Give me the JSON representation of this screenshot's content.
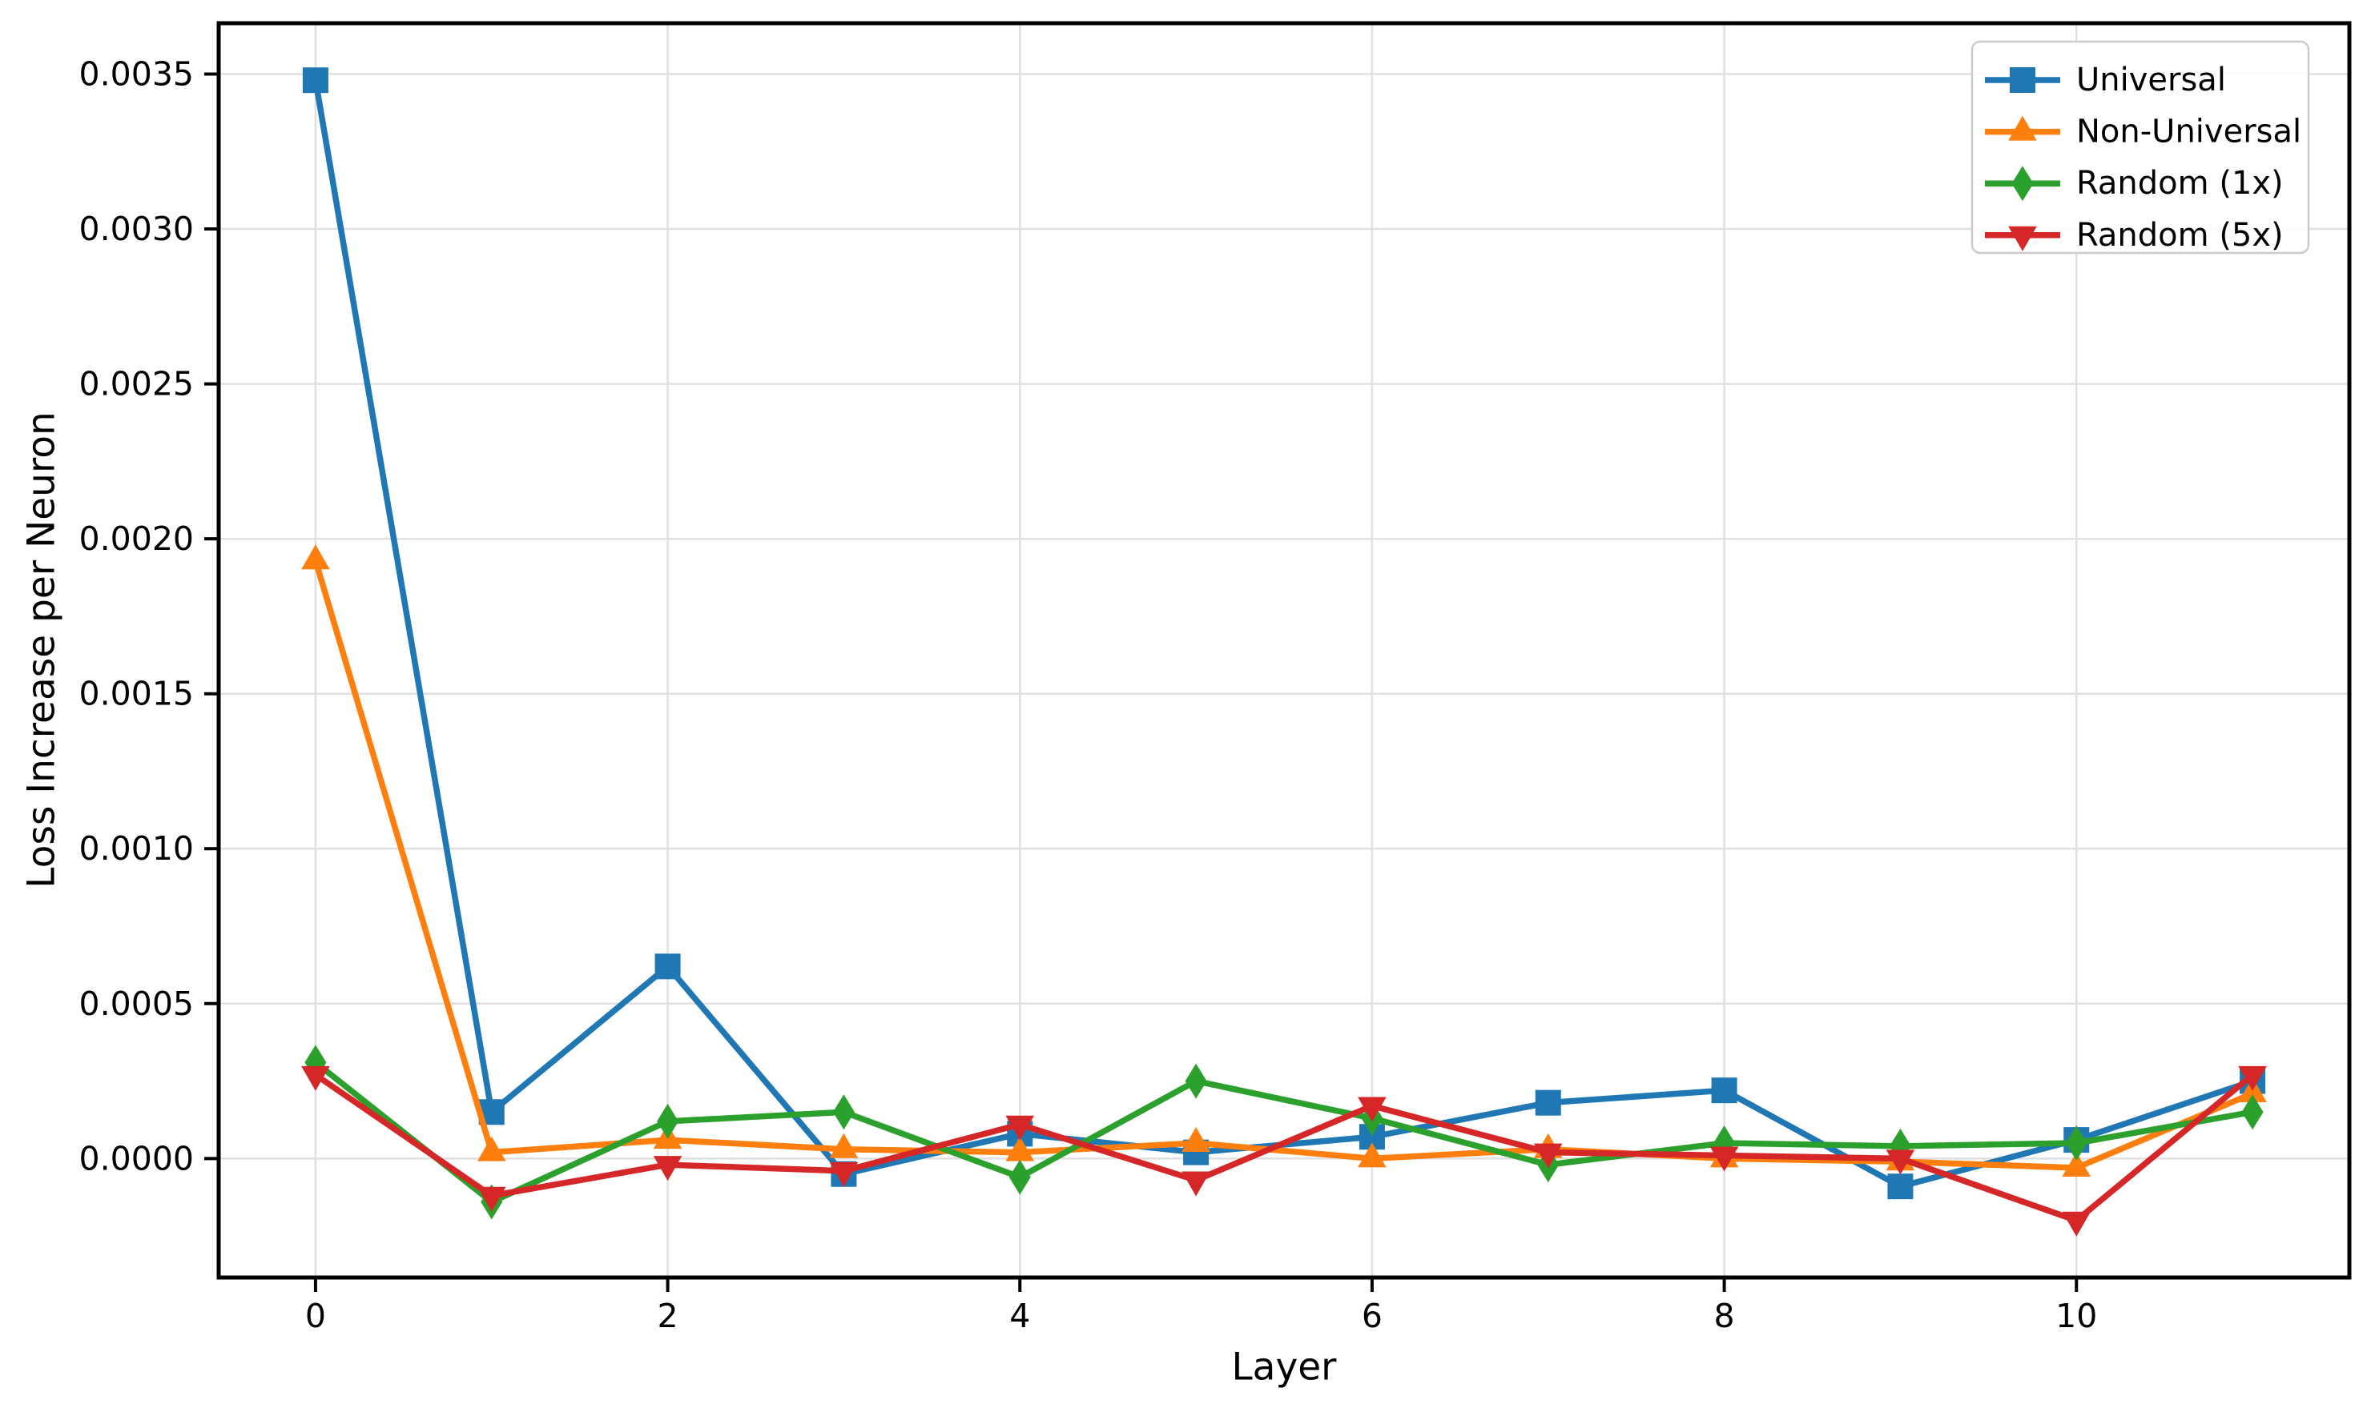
{
  "chart_data": {
    "type": "line",
    "title": "",
    "xlabel": "Layer",
    "ylabel": "Loss Increase per Neuron",
    "x": [
      0,
      1,
      2,
      3,
      4,
      5,
      6,
      7,
      8,
      9,
      10,
      11
    ],
    "series": [
      {
        "name": "Universal",
        "color": "#1f77b4",
        "marker": "square",
        "values": [
          0.00348,
          0.00015,
          0.00062,
          -5e-05,
          8e-05,
          2e-05,
          7e-05,
          0.00018,
          0.00022,
          -9e-05,
          6e-05,
          0.00025
        ]
      },
      {
        "name": "Non-Universal",
        "color": "#ff7f0e",
        "marker": "triangle-up",
        "values": [
          0.00193,
          2e-05,
          6e-05,
          3e-05,
          2e-05,
          5e-05,
          0.0,
          3e-05,
          0.0,
          -1e-05,
          -3e-05,
          0.00021
        ]
      },
      {
        "name": "Random (1x)",
        "color": "#2ca02c",
        "marker": "thin-diamond",
        "values": [
          0.00031,
          -0.00014,
          0.00012,
          0.00015,
          -6e-05,
          0.00025,
          0.00013,
          -2e-05,
          5e-05,
          4e-05,
          5e-05,
          0.00015
        ]
      },
      {
        "name": "Random (5x)",
        "color": "#d62728",
        "marker": "triangle-down",
        "values": [
          0.00027,
          -0.00012,
          -2e-05,
          -4e-05,
          0.00011,
          -7e-05,
          0.00017,
          2e-05,
          1e-05,
          0.0,
          -0.0002,
          0.00027
        ]
      }
    ],
    "legend": {
      "position": "upper-right",
      "entries": [
        "Universal",
        "Non-Universal",
        "Random (1x)",
        "Random (5x)"
      ]
    },
    "xtick_values": [
      0,
      2,
      4,
      6,
      8,
      10
    ],
    "xtick_labels": [
      "0",
      "2",
      "4",
      "6",
      "8",
      "10"
    ],
    "ytick_values": [
      0.0,
      0.0005,
      0.001,
      0.0015,
      0.002,
      0.0025,
      0.003,
      0.0035
    ],
    "ytick_labels": [
      "0.0000",
      "0.0005",
      "0.0010",
      "0.0015",
      "0.0020",
      "0.0025",
      "0.0030",
      "0.0035"
    ],
    "xlim": [
      -0.55,
      11.55
    ],
    "ylim": [
      -0.000384,
      0.003664
    ],
    "grid": true,
    "colors": {
      "background": "#ffffff",
      "grid": "#e0e0e0",
      "spine": "#000000",
      "tick": "#000000",
      "legend_border": "#cccccc"
    }
  }
}
